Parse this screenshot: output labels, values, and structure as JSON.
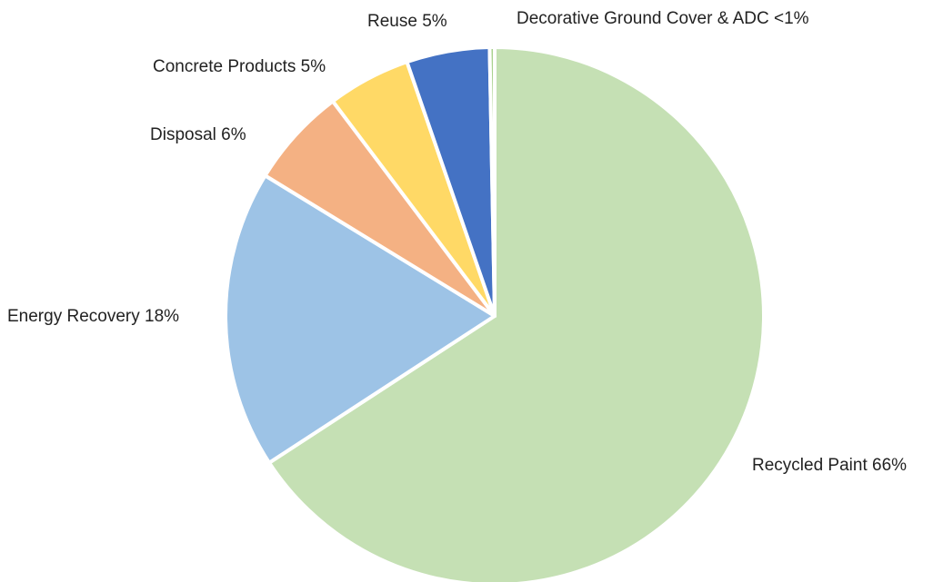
{
  "chart_data": {
    "type": "pie",
    "title": "",
    "start_angle_deg": 0,
    "direction": "clockwise",
    "slices": [
      {
        "name": "Recycled Paint",
        "value": 66,
        "label": "Recycled Paint 66%",
        "color": "#c5e0b4"
      },
      {
        "name": "Energy Recovery",
        "value": 18,
        "label": "Energy Recovery 18%",
        "color": "#9dc3e6"
      },
      {
        "name": "Disposal",
        "value": 6,
        "label": "Disposal 6%",
        "color": "#f4b183"
      },
      {
        "name": "Concrete Products",
        "value": 5,
        "label": "Concrete Products 5%",
        "color": "#ffd966"
      },
      {
        "name": "Reuse",
        "value": 5,
        "label": "Reuse 5%",
        "color": "#4472c4"
      },
      {
        "name": "Decorative Ground Cover & ADC",
        "value": 0.3,
        "label": "Decorative Ground Cover & ADC <1%",
        "color": "#a9d18e"
      }
    ]
  }
}
